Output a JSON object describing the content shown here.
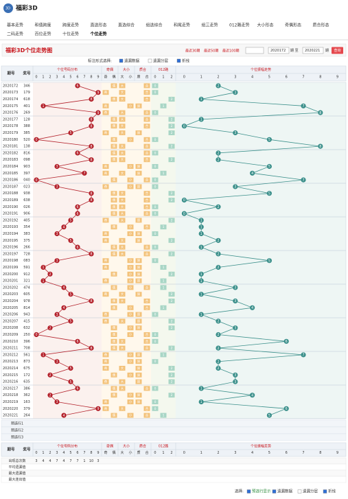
{
  "header": {
    "logo": "福彩3D",
    "nav": [
      "基本走势",
      "和值跨度",
      "跨度走势",
      "直选形态",
      "直选综合",
      "组选综合",
      "和尾走势",
      "组三走势",
      "012路走势",
      "大小形态",
      "奇偶形态",
      "质合形态",
      "二码走势",
      "百位走势",
      "十位走势",
      "个位走势"
    ],
    "active": "个位走势"
  },
  "title": "福彩3D个位走势图",
  "period_options": [
    "最近30期",
    "最近50期",
    "最近100期"
  ],
  "range": {
    "from": "2020172",
    "sep": "期 至",
    "to": "2020221",
    "end": "期",
    "button": "查询"
  },
  "options": {
    "label": "标注形式选择:",
    "items": [
      "遗漏数据",
      "遗漏分层",
      "折线"
    ]
  },
  "table": {
    "head_issue": "期号",
    "head_prize": "奖号",
    "groups": [
      {
        "name": "个位号码分布",
        "subs": [
          "0",
          "1",
          "2",
          "3",
          "4",
          "5",
          "6",
          "7",
          "8",
          "9"
        ]
      },
      {
        "name": "奇偶",
        "subs": [
          "奇",
          "偶"
        ]
      },
      {
        "name": "大小",
        "subs": [
          "大",
          "小"
        ]
      },
      {
        "name": "质合",
        "subs": [
          "质",
          "合"
        ]
      },
      {
        "name": "012路",
        "subs": [
          "0",
          "1",
          "2"
        ]
      },
      {
        "name": "个位振幅走势",
        "subs": [
          "0",
          "1",
          "2",
          "3",
          "4",
          "5",
          "6",
          "7",
          "8",
          "9"
        ]
      }
    ],
    "rows": [
      {
        "issue": "2020172",
        "prize": "346",
        "units": 6,
        "amp": 2
      },
      {
        "issue": "2020173",
        "prize": "179",
        "units": 9,
        "amp": 3
      },
      {
        "issue": "2020174",
        "prize": "618",
        "units": 8,
        "amp": 1
      },
      {
        "issue": "2020175",
        "prize": "401",
        "units": 1,
        "amp": 7
      },
      {
        "issue": "2020176",
        "prize": "269",
        "units": 9,
        "amp": 8
      },
      {
        "issue": "2020177",
        "prize": "128",
        "units": 8,
        "amp": 1
      },
      {
        "issue": "2020178",
        "prize": "388",
        "units": 8,
        "amp": 0
      },
      {
        "issue": "2020179",
        "prize": "385",
        "units": 5,
        "amp": 3
      },
      {
        "issue": "2020180",
        "prize": "520",
        "units": 0,
        "amp": 5
      },
      {
        "issue": "2020181",
        "prize": "138",
        "units": 8,
        "amp": 8
      },
      {
        "issue": "2020182",
        "prize": "816",
        "units": 6,
        "amp": 2
      },
      {
        "issue": "2020183",
        "prize": "098",
        "units": 8,
        "amp": 2
      },
      {
        "issue": "2020184",
        "prize": "903",
        "units": 3,
        "amp": 5
      },
      {
        "issue": "2020185",
        "prize": "397",
        "units": 7,
        "amp": 4
      },
      {
        "issue": "2020186",
        "prize": "040",
        "units": 0,
        "amp": 7
      },
      {
        "issue": "2020187",
        "prize": "023",
        "units": 3,
        "amp": 3
      },
      {
        "issue": "2020188",
        "prize": "938",
        "units": 8,
        "amp": 5
      },
      {
        "issue": "2020189",
        "prize": "638",
        "units": 8,
        "amp": 0
      },
      {
        "issue": "2020190",
        "prize": "026",
        "units": 6,
        "amp": 2
      },
      {
        "issue": "2020191",
        "prize": "906",
        "units": 6,
        "amp": 0
      },
      {
        "issue": "2020192",
        "prize": "405",
        "units": 5,
        "amp": 1
      },
      {
        "issue": "2020193",
        "prize": "354",
        "units": 4,
        "amp": 1
      },
      {
        "issue": "2020194",
        "prize": "383",
        "units": 3,
        "amp": 1
      },
      {
        "issue": "2020195",
        "prize": "375",
        "units": 5,
        "amp": 2
      },
      {
        "issue": "2020196",
        "prize": "266",
        "units": 6,
        "amp": 1
      },
      {
        "issue": "2020197",
        "prize": "728",
        "units": 8,
        "amp": 2
      },
      {
        "issue": "2020198",
        "prize": "083",
        "units": 3,
        "amp": 5
      },
      {
        "issue": "2020199",
        "prize": "591",
        "units": 1,
        "amp": 2
      },
      {
        "issue": "2020200",
        "prize": "912",
        "units": 2,
        "amp": 1
      },
      {
        "issue": "2020201",
        "prize": "321",
        "units": 1,
        "amp": 1
      },
      {
        "issue": "2020202",
        "prize": "474",
        "units": 4,
        "amp": 3
      },
      {
        "issue": "2020203",
        "prize": "605",
        "units": 5,
        "amp": 1
      },
      {
        "issue": "2020204",
        "prize": "978",
        "units": 8,
        "amp": 3
      },
      {
        "issue": "2020205",
        "prize": "814",
        "units": 4,
        "amp": 4
      },
      {
        "issue": "2020206",
        "prize": "943",
        "units": 3,
        "amp": 1
      },
      {
        "issue": "2020207",
        "prize": "415",
        "units": 5,
        "amp": 2
      },
      {
        "issue": "2020208",
        "prize": "632",
        "units": 2,
        "amp": 3
      },
      {
        "issue": "2020209",
        "prize": "250",
        "units": 0,
        "amp": 2
      },
      {
        "issue": "2020210",
        "prize": "396",
        "units": 6,
        "amp": 6
      },
      {
        "issue": "2020211",
        "prize": "708",
        "units": 8,
        "amp": 2
      },
      {
        "issue": "2020212",
        "prize": "561",
        "units": 1,
        "amp": 7
      },
      {
        "issue": "2020213",
        "prize": "873",
        "units": 3,
        "amp": 2
      },
      {
        "issue": "2020214",
        "prize": "675",
        "units": 5,
        "amp": 2
      },
      {
        "issue": "2020215",
        "prize": "172",
        "units": 2,
        "amp": 3
      },
      {
        "issue": "2020216",
        "prize": "635",
        "units": 5,
        "amp": 3
      },
      {
        "issue": "2020217",
        "prize": "386",
        "units": 6,
        "amp": 1
      },
      {
        "issue": "2020218",
        "prize": "362",
        "units": 2,
        "amp": 4
      },
      {
        "issue": "2020219",
        "prize": "163",
        "units": 3,
        "amp": 1
      },
      {
        "issue": "2020220",
        "prize": "379",
        "units": 9,
        "amp": 6
      },
      {
        "issue": "2020221",
        "prize": "264",
        "units": 4,
        "amp": 5
      }
    ],
    "preselect": [
      "预选行1",
      "预选行2",
      "预选行3"
    ],
    "stats": [
      {
        "label": "出现总次数",
        "values": [
          3,
          4,
          4,
          7,
          4,
          7,
          7,
          1,
          10,
          3
        ]
      },
      {
        "label": "平均遗漏值"
      },
      {
        "label": "最大遗漏值"
      },
      {
        "label": "最大连出值"
      }
    ]
  },
  "footer": {
    "label": "选择:",
    "items": [
      "预选行显示",
      "遗漏数据",
      "遗漏分层",
      "折线"
    ]
  }
}
